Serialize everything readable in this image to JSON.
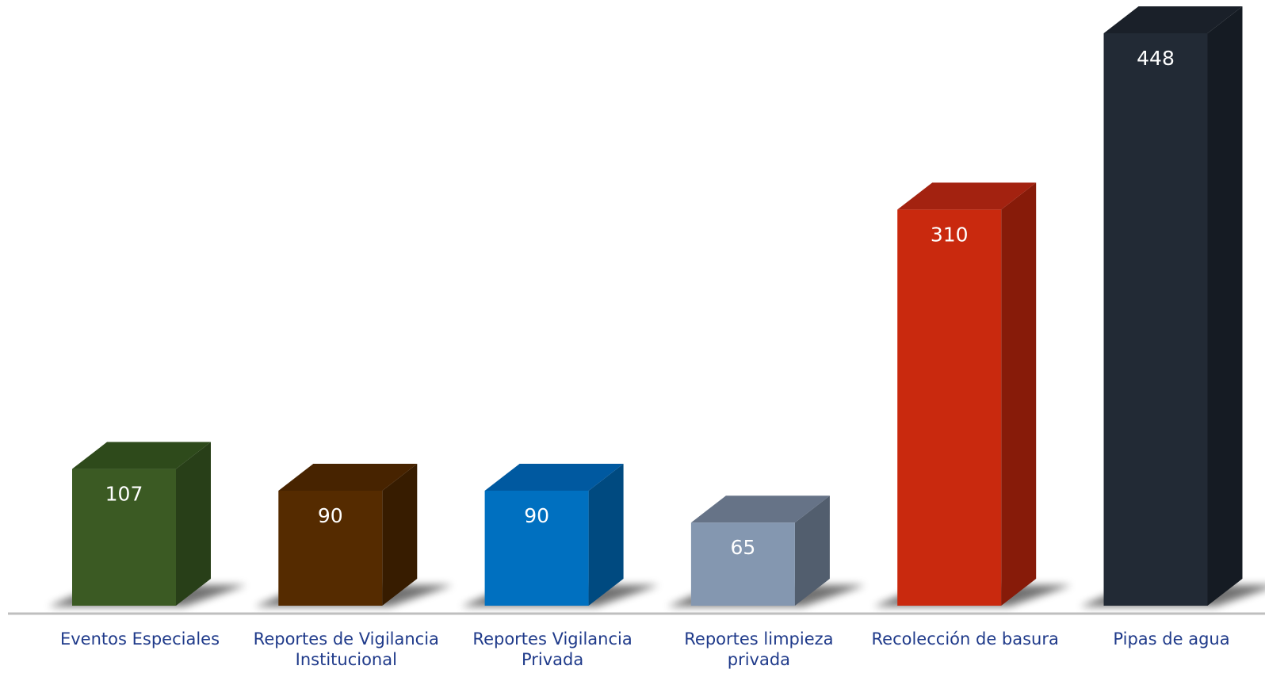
{
  "chart_data": {
    "type": "bar",
    "categories": [
      [
        "Eventos Especiales"
      ],
      [
        "Reportes de Vigilancia",
        "Institucional"
      ],
      [
        "Reportes Vigilancia",
        "Privada"
      ],
      [
        "Reportes limpieza",
        "privada"
      ],
      [
        "Recolección de basura"
      ],
      [
        "Pipas de agua"
      ]
    ],
    "values": [
      107,
      90,
      90,
      65,
      310,
      448
    ],
    "value_labels": [
      "107",
      "90",
      "90",
      "65",
      "310",
      "448"
    ],
    "colors": {
      "front": [
        "#3b5a23",
        "#552b00",
        "#0070c0",
        "#8497b0",
        "#c9290e",
        "#222a35"
      ],
      "side": [
        "#283f18",
        "#371c00",
        "#004a80",
        "#525e6e",
        "#871b09",
        "#151b23"
      ],
      "top": [
        "#2e4a1b",
        "#472300",
        "#0059a0",
        "#667387",
        "#a32210",
        "#1a2029"
      ]
    },
    "title": "",
    "xlabel": "",
    "ylabel": "",
    "legend": "none",
    "grid": false,
    "ylim": [
      0,
      448
    ],
    "depth_3d": true,
    "axis_line_color": "#bfbfbf",
    "label_color": "#1f3a8a"
  }
}
